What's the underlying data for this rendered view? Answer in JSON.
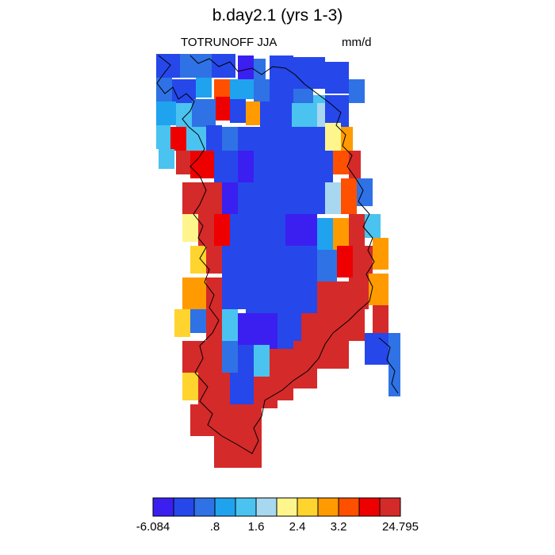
{
  "chart_data": {
    "type": "heatmap",
    "title": "b.day2.1 (yrs 1-3)",
    "subtitle_left": "TOTRUNOFF JJA",
    "subtitle_right": "mm/d",
    "colorbar": {
      "colors": [
        "#3b1ff0",
        "#2647ea",
        "#2f72e5",
        "#1fa3ef",
        "#4ac3f0",
        "#a8d8f0",
        "#fff58d",
        "#ffd42e",
        "#ff9b00",
        "#ff5000",
        "#ee0000",
        "#d42a2a"
      ],
      "labels": [
        "-6.084",
        ".8",
        "1.6",
        "2.4",
        "3.2",
        "24.795"
      ]
    },
    "grid": {
      "rows": [
        [
          5,
          "AAAAAA"
        ],
        [
          6,
          "AAAA5AAAAA"
        ],
        [
          5,
          "AAA5A6AA6AAAA"
        ],
        [
          4,
          "A5AAAA6AAAAAA"
        ],
        [
          4,
          "AA5AAAA"
        ],
        [
          3,
          "5A6A9AA"
        ]
      ]
    }
  }
}
